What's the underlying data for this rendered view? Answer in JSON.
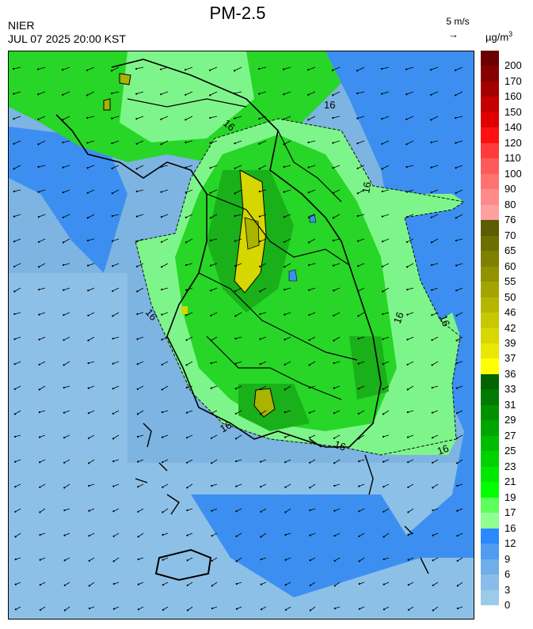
{
  "header": {
    "title": "PM-2.5",
    "agency": "NIER",
    "timestamp": "JUL 07 2025 20:00 KST",
    "wind_reference": "5 m/s",
    "unit": "µg/m",
    "unit_exponent": "3"
  },
  "map": {
    "contour_level_label": "16",
    "colors": {
      "sea": "#7db4e2",
      "sea_far": "#8dc0e6",
      "coast_blue": "#3c8ff0",
      "land_light_green": "#7ef58a",
      "land_green": "#27d627",
      "land_dark_green": "#19b019",
      "land_olive": "#a8b400",
      "hotspot_yellow": "#d6d600",
      "boundary": "#000000"
    }
  },
  "colorbar": {
    "bands": [
      {
        "label": "200",
        "color": "#6b0000"
      },
      {
        "label": "170",
        "color": "#870000"
      },
      {
        "label": "160",
        "color": "#a30000"
      },
      {
        "label": "150",
        "color": "#c40000"
      },
      {
        "label": "140",
        "color": "#e00000"
      },
      {
        "label": "120",
        "color": "#ff1010"
      },
      {
        "label": "110",
        "color": "#ff3a3a"
      },
      {
        "label": "100",
        "color": "#ff5a5a"
      },
      {
        "label": "90",
        "color": "#ff7272"
      },
      {
        "label": "80",
        "color": "#ff8a8a"
      },
      {
        "label": "76",
        "color": "#ffa0a0"
      },
      {
        "label": "70",
        "color": "#5c5c00"
      },
      {
        "label": "65",
        "color": "#6e6e00"
      },
      {
        "label": "60",
        "color": "#808000"
      },
      {
        "label": "55",
        "color": "#929200"
      },
      {
        "label": "50",
        "color": "#a4a400"
      },
      {
        "label": "46",
        "color": "#b6b600"
      },
      {
        "label": "42",
        "color": "#c8c800"
      },
      {
        "label": "39",
        "color": "#d8d800"
      },
      {
        "label": "37",
        "color": "#e8e800"
      },
      {
        "label": "36",
        "color": "#ffff00"
      },
      {
        "label": "33",
        "color": "#006400"
      },
      {
        "label": "31",
        "color": "#007a00"
      },
      {
        "label": "29",
        "color": "#009000"
      },
      {
        "label": "27",
        "color": "#00a600"
      },
      {
        "label": "25",
        "color": "#00bc00"
      },
      {
        "label": "23",
        "color": "#00d200"
      },
      {
        "label": "21",
        "color": "#00e800"
      },
      {
        "label": "19",
        "color": "#00ff00"
      },
      {
        "label": "17",
        "color": "#5cff5c"
      },
      {
        "label": "16",
        "color": "#90ff90"
      },
      {
        "label": "12",
        "color": "#2b88ff"
      },
      {
        "label": "9",
        "color": "#4f9cf0"
      },
      {
        "label": "6",
        "color": "#6eaee9"
      },
      {
        "label": "3",
        "color": "#87bde8"
      },
      {
        "label": "0",
        "color": "#9ccbe8"
      }
    ]
  }
}
